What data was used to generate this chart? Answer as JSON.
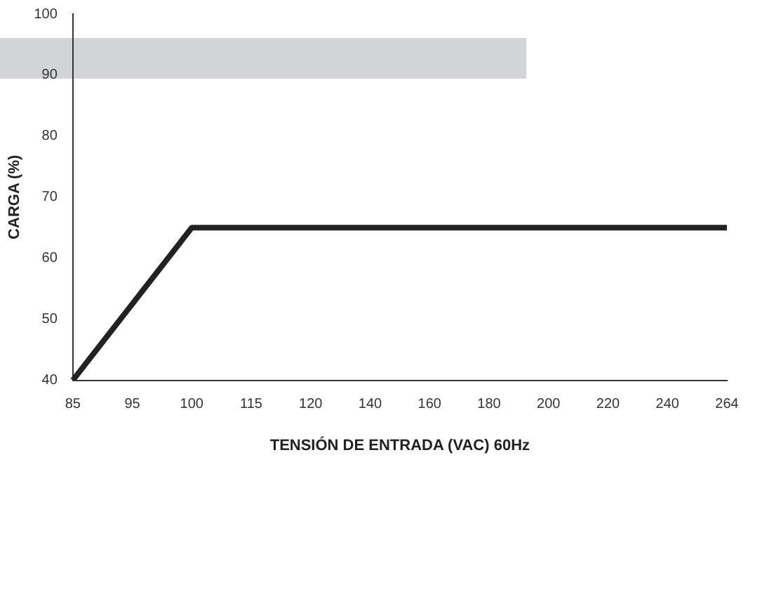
{
  "chart_data": {
    "type": "line",
    "xlabel": "TENSIÓN DE ENTRADA (VAC) 60Hz",
    "ylabel": "CARGA (%)",
    "categories": [
      "85",
      "95",
      "100",
      "115",
      "120",
      "140",
      "160",
      "180",
      "200",
      "220",
      "240",
      "264"
    ],
    "series": [
      {
        "color": "#222222",
        "values": [
          40,
          null,
          65,
          65,
          65,
          65,
          65,
          65,
          65,
          65,
          65,
          65
        ]
      }
    ],
    "ylim": [
      40,
      100
    ],
    "yticks": [
      40,
      50,
      60,
      70,
      80,
      90,
      100
    ],
    "grid": false,
    "legend": false,
    "marker": "none",
    "line_style": "solid"
  }
}
